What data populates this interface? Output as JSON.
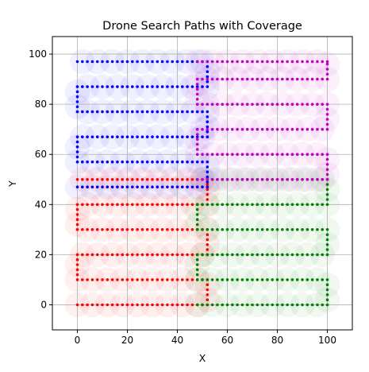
{
  "chart_data": {
    "type": "scatter",
    "title": "Drone Search Paths with Coverage",
    "xlabel": "X",
    "ylabel": "Y",
    "xlim": [
      -10,
      110
    ],
    "ylim": [
      -10,
      107
    ],
    "xticks": [
      0,
      20,
      40,
      60,
      80,
      100
    ],
    "yticks": [
      0,
      20,
      40,
      60,
      80,
      100
    ],
    "grid": true,
    "legend": "none",
    "point_spacing": 2,
    "series": [
      {
        "color": "#ff0000",
        "x_range": [
          0,
          52
        ],
        "rows": [
          0,
          10,
          20,
          30,
          40,
          50
        ]
      },
      {
        "color": "#008000",
        "x_range": [
          48,
          100
        ],
        "rows": [
          0,
          10,
          20,
          30,
          40,
          50
        ]
      },
      {
        "color": "#0000ff",
        "x_range": [
          0,
          52
        ],
        "rows": [
          47,
          57,
          67,
          77,
          87,
          97
        ]
      },
      {
        "color": "#bf00bf",
        "x_range": [
          48,
          100
        ],
        "rows": [
          50,
          60,
          70,
          80,
          90,
          97
        ]
      }
    ]
  }
}
